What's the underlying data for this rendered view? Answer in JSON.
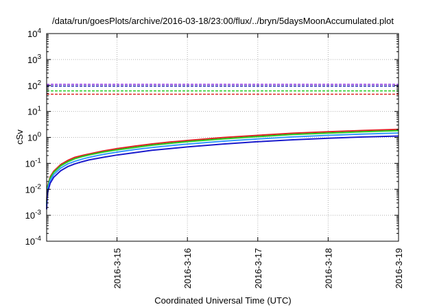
{
  "chart_data": {
    "type": "line",
    "title": "/data/run/goesPlots/archive/2016-03-18/23:00/flux/../bryn/5daysMoonAccumulated.plot",
    "xlabel": "Coordinated Universal Time (UTC)",
    "ylabel": "cSv",
    "yscale": "log",
    "ylim": [
      0.0001,
      10000
    ],
    "xlim": [
      0,
      5
    ],
    "grid": true,
    "x_ticks": [
      {
        "x": 1,
        "label": "2016-3-15"
      },
      {
        "x": 2,
        "label": "2016-3-16"
      },
      {
        "x": 3,
        "label": "2016-3-17"
      },
      {
        "x": 4,
        "label": "2016-3-18"
      },
      {
        "x": 5,
        "label": "2016-3-19"
      }
    ],
    "y_ticks": [
      {
        "exp": "-4",
        "value": 0.0001
      },
      {
        "exp": "-3",
        "value": 0.001
      },
      {
        "exp": "-2",
        "value": 0.01
      },
      {
        "exp": "-1",
        "value": 0.1
      },
      {
        "exp": "0",
        "value": 1
      },
      {
        "exp": "1",
        "value": 10
      },
      {
        "exp": "2",
        "value": 100
      },
      {
        "exp": "3",
        "value": 1000
      },
      {
        "exp": "4",
        "value": 10000
      }
    ],
    "y_tick_base": "10",
    "thresholds": [
      {
        "value": 110,
        "color": "#8a2be2"
      },
      {
        "value": 95,
        "color": "#1e1eb4"
      },
      {
        "value": 62,
        "color": "#22cc22"
      },
      {
        "value": 46,
        "color": "#dd2222"
      }
    ],
    "series": [
      {
        "color": "#dd2222",
        "x": [
          0,
          0.01,
          0.05,
          0.1,
          0.2,
          0.3,
          0.4,
          0.5,
          0.6,
          0.8,
          1.0,
          1.25,
          1.5,
          1.75,
          2.0,
          2.5,
          3.0,
          3.5,
          4.0,
          4.5,
          5.0
        ],
        "y": [
          0.003,
          0.012,
          0.03,
          0.05,
          0.09,
          0.13,
          0.17,
          0.2,
          0.23,
          0.3,
          0.37,
          0.46,
          0.56,
          0.66,
          0.76,
          0.98,
          1.2,
          1.45,
          1.65,
          1.85,
          2.05
        ]
      },
      {
        "color": "#22cc22",
        "x": [
          0,
          0.01,
          0.05,
          0.1,
          0.2,
          0.3,
          0.4,
          0.5,
          0.6,
          0.8,
          1.0,
          1.25,
          1.5,
          1.75,
          2.0,
          2.5,
          3.0,
          3.5,
          4.0,
          4.5,
          5.0
        ],
        "y": [
          0.0027,
          0.011,
          0.027,
          0.045,
          0.08,
          0.115,
          0.15,
          0.18,
          0.21,
          0.27,
          0.33,
          0.41,
          0.5,
          0.59,
          0.68,
          0.87,
          1.07,
          1.29,
          1.47,
          1.65,
          1.82
        ]
      },
      {
        "color": "#3399ff",
        "x": [
          0,
          0.01,
          0.05,
          0.1,
          0.2,
          0.3,
          0.4,
          0.5,
          0.6,
          0.8,
          1.0,
          1.25,
          1.5,
          1.75,
          2.0,
          2.5,
          3.0,
          3.5,
          4.0,
          4.5,
          5.0
        ],
        "y": [
          0.0023,
          0.009,
          0.022,
          0.037,
          0.066,
          0.095,
          0.12,
          0.145,
          0.17,
          0.22,
          0.27,
          0.34,
          0.41,
          0.48,
          0.55,
          0.71,
          0.87,
          1.05,
          1.2,
          1.35,
          1.48
        ]
      },
      {
        "color": "#1a1acc",
        "x": [
          0,
          0.01,
          0.05,
          0.1,
          0.2,
          0.3,
          0.4,
          0.5,
          0.6,
          0.8,
          1.0,
          1.25,
          1.5,
          1.75,
          2.0,
          2.5,
          3.0,
          3.5,
          4.0,
          4.5,
          5.0
        ],
        "y": [
          0.0017,
          0.007,
          0.017,
          0.029,
          0.052,
          0.075,
          0.095,
          0.115,
          0.135,
          0.17,
          0.21,
          0.26,
          0.32,
          0.37,
          0.43,
          0.55,
          0.68,
          0.81,
          0.93,
          1.04,
          1.13
        ]
      }
    ]
  }
}
